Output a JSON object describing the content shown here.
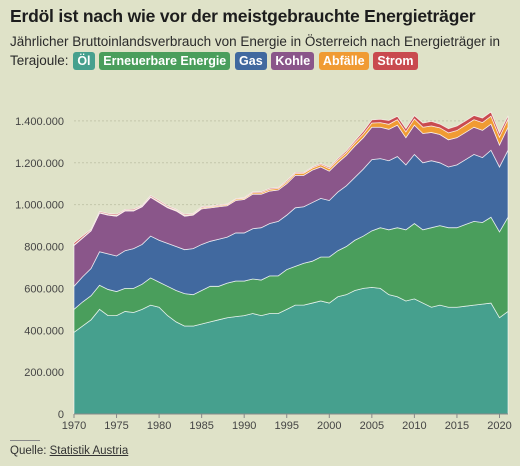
{
  "title": "Erdöl ist nach wie vor der meistgebrauchte Energieträger",
  "subtitle": "Jährlicher Bruttoinlandsverbrauch von Energie in Österreich nach Energieträger in Terajoule:",
  "source_label": "Quelle:",
  "source_link": "Statistik Austria",
  "colors": {
    "oel": "#46a08e",
    "erneuerbare": "#4a9e5c",
    "gas": "#41699f",
    "kohle": "#8a568a",
    "abfaelle": "#f09b33",
    "strom": "#c94a4f"
  },
  "chart_data": {
    "type": "area",
    "stacked": true,
    "xlabel": "",
    "ylabel": "",
    "xlim": [
      1970,
      2021
    ],
    "ylim": [
      0,
      1500000
    ],
    "grid": true,
    "legend": "inline-subtitle",
    "x": [
      1970,
      1971,
      1972,
      1973,
      1974,
      1975,
      1976,
      1977,
      1978,
      1979,
      1980,
      1981,
      1982,
      1983,
      1984,
      1985,
      1986,
      1987,
      1988,
      1989,
      1990,
      1991,
      1992,
      1993,
      1994,
      1995,
      1996,
      1997,
      1998,
      1999,
      2000,
      2001,
      2002,
      2003,
      2004,
      2005,
      2006,
      2007,
      2008,
      2009,
      2010,
      2011,
      2012,
      2013,
      2014,
      2015,
      2016,
      2017,
      2018,
      2019,
      2020,
      2021
    ],
    "x_ticks": [
      "1970",
      "1975",
      "1980",
      "1985",
      "1990",
      "1995",
      "2000",
      "2005",
      "2010",
      "2015",
      "2020"
    ],
    "y_ticks": [
      "0",
      "200.000",
      "400.000",
      "600.000",
      "800.000",
      "1.000.000",
      "1.200.000",
      "1.400.000"
    ],
    "series": [
      {
        "name": "Öl",
        "color_key": "oel",
        "values": [
          390000,
          420000,
          450000,
          500000,
          470000,
          470000,
          490000,
          485000,
          500000,
          520000,
          510000,
          470000,
          440000,
          420000,
          420000,
          430000,
          440000,
          450000,
          460000,
          465000,
          470000,
          480000,
          470000,
          480000,
          480000,
          500000,
          520000,
          520000,
          530000,
          540000,
          530000,
          560000,
          570000,
          590000,
          600000,
          605000,
          600000,
          570000,
          560000,
          540000,
          550000,
          530000,
          510000,
          520000,
          510000,
          510000,
          515000,
          520000,
          525000,
          530000,
          460000,
          490000
        ]
      },
      {
        "name": "Erneuerbare Energie",
        "color_key": "erneuerbare",
        "values": [
          110000,
          115000,
          115000,
          115000,
          125000,
          115000,
          110000,
          115000,
          120000,
          130000,
          120000,
          140000,
          150000,
          155000,
          150000,
          160000,
          170000,
          160000,
          165000,
          170000,
          165000,
          165000,
          170000,
          180000,
          180000,
          190000,
          185000,
          200000,
          200000,
          210000,
          220000,
          220000,
          230000,
          240000,
          250000,
          270000,
          290000,
          310000,
          330000,
          340000,
          360000,
          350000,
          380000,
          380000,
          380000,
          380000,
          390000,
          400000,
          390000,
          410000,
          410000,
          450000
        ]
      },
      {
        "name": "Gas",
        "color_key": "gas",
        "values": [
          110000,
          120000,
          130000,
          160000,
          170000,
          170000,
          180000,
          190000,
          190000,
          200000,
          200000,
          205000,
          210000,
          210000,
          220000,
          220000,
          215000,
          225000,
          220000,
          230000,
          230000,
          240000,
          250000,
          250000,
          260000,
          260000,
          280000,
          270000,
          280000,
          280000,
          270000,
          280000,
          290000,
          300000,
          320000,
          340000,
          330000,
          330000,
          340000,
          310000,
          330000,
          320000,
          320000,
          300000,
          290000,
          300000,
          310000,
          320000,
          310000,
          320000,
          310000,
          320000
        ]
      },
      {
        "name": "Kohle",
        "color_key": "kohle",
        "values": [
          195000,
          185000,
          180000,
          185000,
          185000,
          190000,
          190000,
          180000,
          180000,
          185000,
          180000,
          170000,
          170000,
          160000,
          160000,
          170000,
          160000,
          155000,
          150000,
          155000,
          160000,
          165000,
          160000,
          155000,
          150000,
          150000,
          155000,
          150000,
          155000,
          150000,
          140000,
          140000,
          145000,
          150000,
          150000,
          155000,
          150000,
          150000,
          150000,
          130000,
          140000,
          140000,
          135000,
          135000,
          130000,
          130000,
          130000,
          130000,
          130000,
          125000,
          105000,
          110000
        ]
      },
      {
        "name": "Abfälle",
        "color_key": "abfaelle",
        "values": [
          2000,
          2000,
          2000,
          2000,
          3000,
          3000,
          3000,
          3000,
          3000,
          3000,
          4000,
          4000,
          4000,
          4000,
          4000,
          5000,
          5000,
          5000,
          5000,
          6000,
          6000,
          7000,
          7000,
          8000,
          8000,
          9000,
          9000,
          10000,
          10000,
          11000,
          12000,
          13000,
          14000,
          16000,
          18000,
          20000,
          22000,
          24000,
          26000,
          28000,
          30000,
          30000,
          31000,
          32000,
          33000,
          34000,
          35000,
          36000,
          37000,
          38000,
          38000,
          39000
        ]
      },
      {
        "name": "Strom",
        "color_key": "strom",
        "values": [
          10000,
          8000,
          5000,
          5000,
          5000,
          6000,
          4000,
          5000,
          4000,
          5000,
          6000,
          5000,
          4000,
          5000,
          4000,
          5000,
          3000,
          4000,
          3000,
          2000,
          3000,
          4000,
          5000,
          5000,
          4000,
          6000,
          5000,
          4000,
          5000,
          5000,
          6000,
          7000,
          8000,
          9000,
          12000,
          15000,
          16000,
          18000,
          16000,
          15000,
          15000,
          20000,
          22000,
          18000,
          20000,
          22000,
          20000,
          20000,
          22000,
          20000,
          18000,
          15000
        ]
      }
    ]
  }
}
